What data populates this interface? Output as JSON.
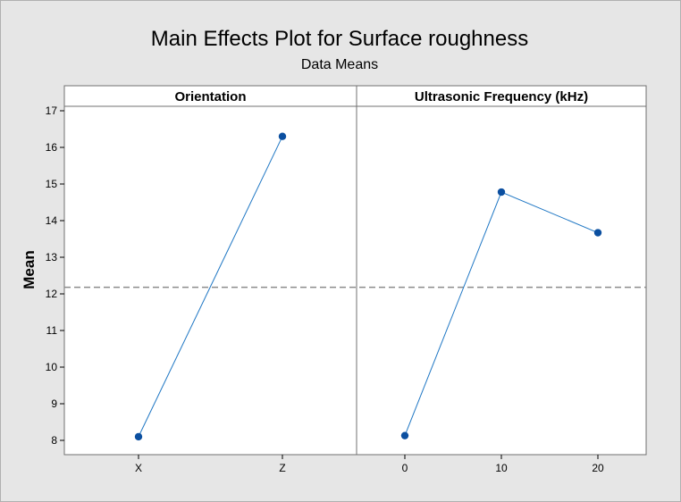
{
  "chart_data": {
    "type": "line",
    "title": "Main Effects Plot for Surface roughness",
    "subtitle": "Data Means",
    "ylabel": "Mean",
    "ylim": [
      7.65,
      17.1
    ],
    "yticks": [
      8,
      9,
      10,
      11,
      12,
      13,
      14,
      15,
      16,
      17
    ],
    "reference_mean": 12.18,
    "grid": false,
    "panels": [
      {
        "factor": "Orientation",
        "categories": [
          "X",
          "Z"
        ],
        "values": [
          8.1,
          16.3
        ]
      },
      {
        "factor": "Ultrasonic Frequency (kHz)",
        "categories": [
          "0",
          "10",
          "20"
        ],
        "values": [
          8.13,
          14.78,
          13.67
        ]
      }
    ],
    "colors": {
      "line": "#1f77c4",
      "marker": "#0b4fa0",
      "reference": "#8c8c8c",
      "panel": "#ffffff",
      "background": "#e6e6e6"
    }
  }
}
